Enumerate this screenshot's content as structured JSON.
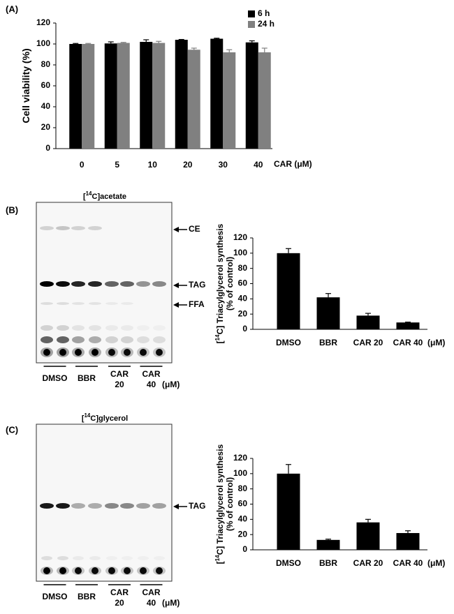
{
  "panel_labels": [
    "(A)",
    "(B)",
    "(C)"
  ],
  "chart_data": [
    {
      "type": "bar",
      "ylabel": [
        "Cell viability (%)"
      ],
      "xlabel": "CAR (μM)",
      "categories": [
        "0",
        "5",
        "10",
        "20",
        "30",
        "40"
      ],
      "series": [
        {
          "name": "6 h",
          "color": "#000000",
          "values": [
            100,
            100.5,
            102,
            104,
            105,
            101.5
          ],
          "errors": [
            0.5,
            1.5,
            2,
            0.3,
            0.5,
            1.5
          ]
        },
        {
          "name": "24 h",
          "color": "#808080",
          "values": [
            100,
            101,
            101,
            94.5,
            92,
            92
          ],
          "errors": [
            0.5,
            0.5,
            1.5,
            1.5,
            2.5,
            4
          ]
        }
      ],
      "ylim": [
        0,
        120
      ],
      "yticks": [
        0,
        20,
        40,
        60,
        80,
        100,
        120
      ],
      "legend": "upper right"
    },
    {
      "type": "bar",
      "ylabel": [
        "[",
        "14",
        "C] Triacylglycerol synthesis"
      ],
      "ylabel_line2": "(% of control)",
      "xlabel": "(μM)",
      "categories": [
        "DMSO",
        "BBR",
        "CAR 20",
        "CAR 40"
      ],
      "values": [
        100,
        42,
        18,
        9
      ],
      "errors": [
        6,
        5,
        3,
        0.5
      ],
      "color": "#000000",
      "ylim": [
        0,
        120
      ],
      "yticks": [
        0,
        20,
        40,
        60,
        80,
        100,
        120
      ]
    },
    {
      "type": "bar",
      "ylabel": [
        "[",
        "14",
        "C] Triacylglycerol synthesis"
      ],
      "ylabel_line2": "(% of control)",
      "xlabel": "(μM)",
      "categories": [
        "DMSO",
        "BBR",
        "CAR 20",
        "CAR 40"
      ],
      "values": [
        100,
        13,
        36,
        22
      ],
      "errors": [
        12,
        1,
        4,
        3
      ],
      "color": "#000000",
      "ylim": [
        0,
        120
      ],
      "yticks": [
        0,
        20,
        40,
        60,
        80,
        100,
        120
      ]
    }
  ],
  "blots": [
    {
      "title": [
        "[",
        "14",
        "C]acetate"
      ],
      "bands": [
        "CE",
        "TAG",
        "FFA"
      ],
      "lanes": [
        [
          "DMSO"
        ],
        [
          "BBR"
        ],
        [
          "CAR",
          "20"
        ],
        [
          "CAR",
          "40"
        ]
      ],
      "unit": "(μM)"
    },
    {
      "title": [
        "[",
        "14",
        "C]glycerol"
      ],
      "bands": [
        "TAG"
      ],
      "lanes": [
        [
          "DMSO"
        ],
        [
          "BBR"
        ],
        [
          "CAR",
          "20"
        ],
        [
          "CAR",
          "40"
        ]
      ],
      "unit": "(μM)"
    }
  ]
}
